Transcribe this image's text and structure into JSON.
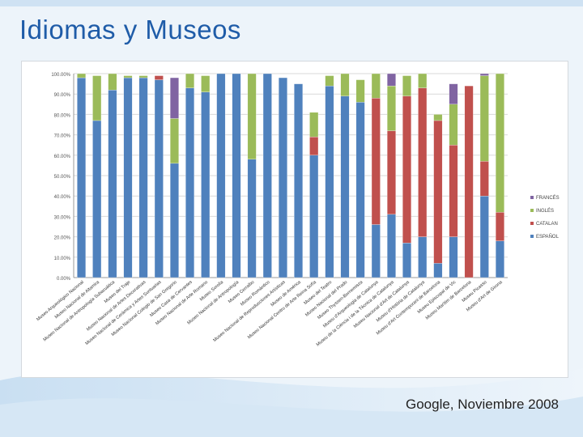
{
  "slide": {
    "title": "Idiomas y Museos",
    "footer": "Google, Noviembre 2008"
  },
  "colors": {
    "ESPAÑOL": "#4f81bd",
    "CATALAN": "#c0504d",
    "INGLÉS": "#9bbb59",
    "FRANCÉS": "#8064a2"
  },
  "chart_data": {
    "type": "bar",
    "stacked": true,
    "title": "",
    "xlabel": "",
    "ylabel": "",
    "ylim": [
      0,
      100
    ],
    "yticks": [
      "0.00%",
      "10.00%",
      "20.00%",
      "30.00%",
      "40.00%",
      "50.00%",
      "60.00%",
      "70.00%",
      "80.00%",
      "90.00%",
      "100.00%"
    ],
    "legend_position": "right",
    "legend": [
      "FRANCÉS",
      "INGLÉS",
      "CATALAN",
      "ESPAÑOL"
    ],
    "categories": [
      "Museo Arqueológico Nacional",
      "Museo Nacional de Altamira",
      "Museo Nacional de Antropología Subacuática",
      "Museo del Traje",
      "Museo Nacional de Artes Decorativas",
      "Museo Nacional de Cerámica y Artes Suntuarias",
      "Museo Nacional Colegio de San Gregorio",
      "Museo Casa de Cervantes",
      "Museo Nacional de Arte Romano",
      "Museo Sorolla",
      "Museo Nacional de Antropología",
      "Museo Cerralbo",
      "Museo Romántico",
      "Museo Nacional de Reproducciones Artísticas",
      "Museo de América",
      "Museo Nacional Centro de Arte Reina Sofía",
      "Museo del Teatro",
      "Museo Nacional del Prado",
      "Museo Thyssen-Bornemisza",
      "Museu d'Arqueologia de Catalunya",
      "Museu de la Ciència i de la Tècnica de Catalunya",
      "Museu Nacional d'Art de Catalunya",
      "Museu d'Història de Catalunya",
      "Museu d'Art Contemporani de Barcelona",
      "Museu Episcopal de Vic",
      "Museu Marítim de Barcelona",
      "Museu Picasso",
      "Museu d'Art de Girona"
    ],
    "series": [
      {
        "name": "ESPAÑOL",
        "values": [
          98,
          77,
          92,
          98,
          98,
          97,
          56,
          93,
          91,
          100,
          100,
          58,
          100,
          98,
          95,
          60,
          94,
          89,
          86,
          26,
          31,
          17,
          20,
          7,
          20,
          0,
          40,
          18
        ]
      },
      {
        "name": "CATALAN",
        "values": [
          0,
          0,
          0,
          0,
          0,
          2,
          0,
          0,
          0,
          0,
          0,
          0,
          0,
          0,
          0,
          9,
          0,
          0,
          0,
          62,
          41,
          72,
          73,
          70,
          45,
          94,
          17,
          14
        ]
      },
      {
        "name": "INGLÉS",
        "values": [
          2,
          22,
          8,
          1,
          1,
          0,
          22,
          7,
          8,
          0,
          0,
          42,
          0,
          0,
          0,
          12,
          5,
          11,
          11,
          12,
          22,
          10,
          7,
          3,
          20,
          0,
          42,
          68
        ]
      },
      {
        "name": "FRANCÉS",
        "values": [
          0,
          0,
          0,
          0,
          0,
          0,
          20,
          0,
          0,
          0,
          0,
          0,
          0,
          0,
          0,
          0,
          0,
          0,
          0,
          0,
          6,
          0,
          0,
          0,
          10,
          0,
          1,
          0
        ]
      }
    ]
  }
}
